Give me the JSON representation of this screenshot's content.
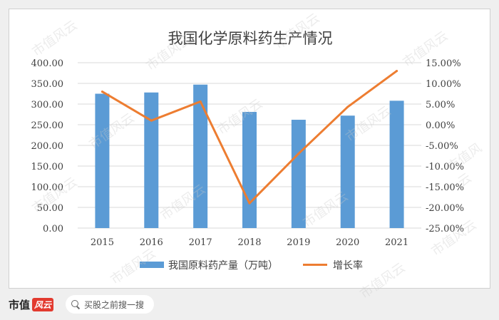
{
  "chart_data": {
    "type": "bar",
    "title": "我国化学原料药生产情况",
    "categories": [
      "2015",
      "2016",
      "2017",
      "2018",
      "2019",
      "2020",
      "2021"
    ],
    "series": [
      {
        "name": "我国原料药产量（万吨）",
        "kind": "bar",
        "axis": "left",
        "color": "#5b9bd5",
        "values": [
          325,
          328,
          347,
          281,
          262,
          272,
          308
        ]
      },
      {
        "name": "增长率",
        "kind": "line",
        "axis": "right",
        "color": "#ed7d31",
        "values": [
          8.0,
          1.0,
          5.6,
          -19.0,
          -7.0,
          4.3,
          13.0
        ]
      }
    ],
    "y_left": {
      "min": 0,
      "max": 400,
      "step": 50,
      "ticks": [
        "0.00",
        "50.00",
        "100.00",
        "150.00",
        "200.00",
        "250.00",
        "300.00",
        "350.00",
        "400.00"
      ]
    },
    "y_right": {
      "min": -25,
      "max": 15,
      "step": 5,
      "ticks": [
        "-25.00%",
        "-20.00%",
        "-15.00%",
        "-10.00%",
        "-5.00%",
        "0.00%",
        "5.00%",
        "10.00%",
        "15.00%"
      ]
    },
    "grid": true,
    "legend_position": "bottom"
  },
  "footer": {
    "logo_text": "市值",
    "logo_badge": "风云",
    "search_placeholder": "买股之前搜一搜"
  },
  "watermark": "市值风云"
}
